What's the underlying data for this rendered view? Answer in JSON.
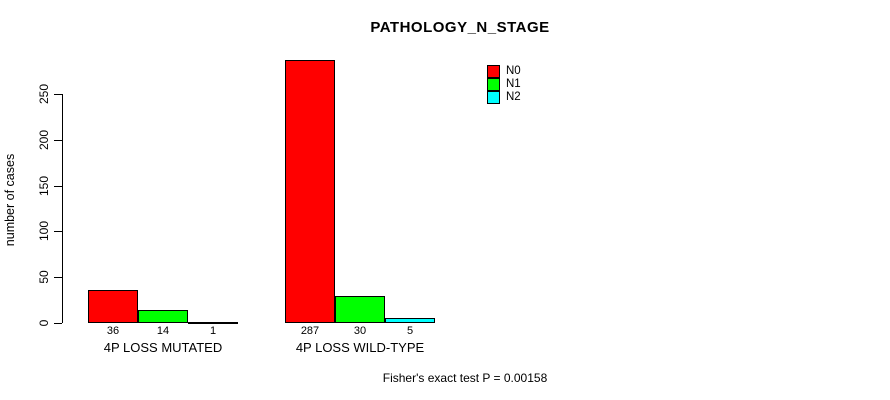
{
  "chart_data": {
    "type": "bar",
    "title": "PATHOLOGY_N_STAGE",
    "ylabel": "number of cases",
    "xlabel": "",
    "categories": [
      "4P LOSS MUTATED",
      "4P LOSS WILD-TYPE"
    ],
    "series": [
      {
        "name": "N0",
        "color": "#ff0000",
        "values": [
          36,
          287
        ]
      },
      {
        "name": "N1",
        "color": "#00ff00",
        "values": [
          14,
          30
        ]
      },
      {
        "name": "N2",
        "color": "#00ffff",
        "values": [
          1,
          5
        ]
      }
    ],
    "yticks": [
      0,
      50,
      100,
      150,
      200,
      250
    ],
    "ylim": [
      0,
      290
    ],
    "grid": false,
    "legend_position": "top-right",
    "bar_border_color": "#000000",
    "annotation": "Fisher's exact test P = 0.00158"
  }
}
